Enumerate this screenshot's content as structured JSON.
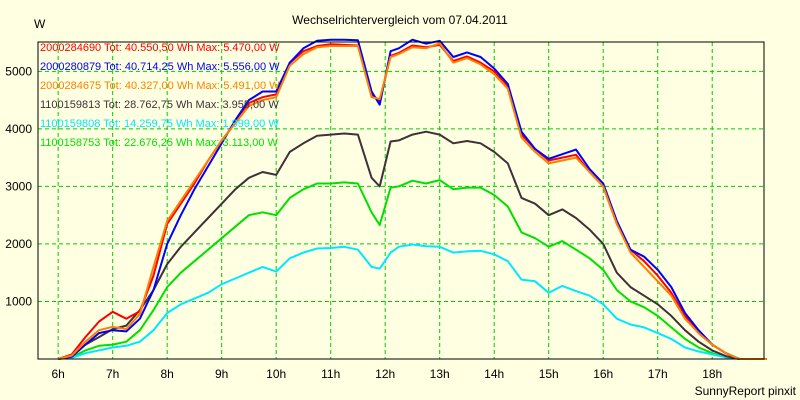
{
  "chart_data": {
    "type": "line",
    "title": "Wechselrichtervergleich vom 07.04.2011",
    "ylabel": "W",
    "xlabel": "",
    "footer": "SunnyReport pinxit",
    "xlim": [
      5.63,
      18.95
    ],
    "ylim": [
      0,
      5510
    ],
    "grid": true,
    "legend_position": "top-left",
    "x_ticks": [
      6,
      7,
      8,
      9,
      10,
      11,
      12,
      13,
      14,
      15,
      16,
      17,
      18
    ],
    "x_tick_labels": [
      "6h",
      "7h",
      "8h",
      "9h",
      "10h",
      "11h",
      "12h",
      "13h",
      "14h",
      "15h",
      "16h",
      "17h",
      "18h"
    ],
    "y_ticks": [
      1000,
      2000,
      3000,
      4000,
      5000
    ],
    "y_tick_labels": [
      "1000",
      "2000",
      "3000",
      "4000",
      "5000"
    ],
    "x": [
      6,
      6.25,
      6.5,
      6.75,
      7,
      7.25,
      7.5,
      7.75,
      8,
      8.25,
      8.5,
      8.75,
      9,
      9.25,
      9.5,
      9.75,
      10,
      10.25,
      10.5,
      10.75,
      11,
      11.25,
      11.5,
      11.75,
      11.9,
      12.1,
      12.25,
      12.5,
      12.75,
      13,
      13.25,
      13.5,
      13.75,
      14,
      14.25,
      14.5,
      14.75,
      15,
      15.25,
      15.5,
      15.75,
      16,
      16.25,
      16.5,
      16.75,
      17,
      17.25,
      17.5,
      17.75,
      18,
      18.25,
      18.5,
      19
    ],
    "series": [
      {
        "name": "2000284690",
        "legend": "2000284690 Tot: 40.550,50 Wh Max: 5.470,00 W",
        "color": "#ff0000",
        "values": [
          0,
          80,
          380,
          650,
          820,
          700,
          830,
          1450,
          2350,
          2700,
          3050,
          3450,
          3800,
          4100,
          4450,
          4550,
          4600,
          5150,
          5350,
          5440,
          5470,
          5460,
          5450,
          4600,
          4480,
          5270,
          5320,
          5450,
          5420,
          5460,
          5180,
          5260,
          5150,
          5000,
          4750,
          3900,
          3650,
          3450,
          3500,
          3550,
          3250,
          3000,
          2350,
          1900,
          1700,
          1450,
          1150,
          750,
          450,
          250,
          100,
          0,
          0
        ]
      },
      {
        "name": "2000280879",
        "legend": "2000280879 Tot: 40.714,25 Wh Max: 5.556,00 W",
        "color": "#0000ff",
        "values": [
          0,
          40,
          250,
          450,
          500,
          480,
          700,
          1200,
          2000,
          2500,
          2950,
          3350,
          3750,
          4150,
          4500,
          4650,
          4650,
          5150,
          5400,
          5530,
          5550,
          5550,
          5540,
          4650,
          4420,
          5350,
          5400,
          5550,
          5480,
          5530,
          5250,
          5330,
          5250,
          5050,
          4780,
          3950,
          3650,
          3480,
          3560,
          3640,
          3300,
          3050,
          2400,
          1900,
          1780,
          1550,
          1250,
          800,
          500,
          250,
          100,
          0,
          0
        ]
      },
      {
        "name": "2000284675",
        "legend": "2000284675 Tot: 40.327,00 Wh Max: 5.491,00 W",
        "color": "#ff8000",
        "values": [
          0,
          60,
          300,
          500,
          560,
          520,
          780,
          1600,
          2400,
          2750,
          3100,
          3450,
          3800,
          4100,
          4400,
          4500,
          4550,
          5100,
          5300,
          5420,
          5440,
          5440,
          5440,
          4550,
          4520,
          5250,
          5300,
          5420,
          5400,
          5490,
          5150,
          5230,
          5120,
          4950,
          4700,
          3850,
          3600,
          3400,
          3450,
          3500,
          3250,
          3000,
          2350,
          1850,
          1600,
          1350,
          1100,
          700,
          450,
          250,
          100,
          0,
          0
        ]
      },
      {
        "name": "1100159813",
        "legend": "1100159813 Tot: 28.762,75 Wh Max: 3.955,00 W",
        "color": "#40303a",
        "values": [
          0,
          50,
          250,
          380,
          520,
          580,
          850,
          1200,
          1650,
          1950,
          2200,
          2450,
          2700,
          2950,
          3150,
          3250,
          3200,
          3600,
          3750,
          3880,
          3900,
          3920,
          3900,
          3150,
          3000,
          3780,
          3800,
          3900,
          3950,
          3900,
          3750,
          3790,
          3750,
          3600,
          3400,
          2800,
          2700,
          2500,
          2600,
          2450,
          2250,
          2000,
          1500,
          1250,
          1100,
          950,
          750,
          500,
          300,
          150,
          50,
          0,
          0
        ]
      },
      {
        "name": "1100159808",
        "legend": "1100159808 Tot: 14.259,75 Wh Max: 1.999,00 W",
        "color": "#00e8ff",
        "values": [
          0,
          20,
          100,
          150,
          200,
          230,
          300,
          500,
          800,
          950,
          1050,
          1150,
          1300,
          1400,
          1500,
          1600,
          1520,
          1750,
          1850,
          1920,
          1930,
          1950,
          1900,
          1600,
          1570,
          1850,
          1950,
          1990,
          1960,
          1950,
          1850,
          1870,
          1880,
          1820,
          1700,
          1380,
          1350,
          1150,
          1270,
          1180,
          1100,
          950,
          700,
          600,
          550,
          450,
          350,
          200,
          130,
          80,
          30,
          0,
          0
        ]
      },
      {
        "name": "1100158753",
        "legend": "1100158753 Tot: 22.676,25 Wh Max: 3.113,00 W",
        "color": "#00e000",
        "values": [
          0,
          30,
          150,
          230,
          250,
          300,
          500,
          850,
          1250,
          1500,
          1700,
          1900,
          2100,
          2300,
          2500,
          2550,
          2500,
          2800,
          2950,
          3050,
          3050,
          3070,
          3050,
          2550,
          2330,
          2980,
          3000,
          3100,
          3050,
          3110,
          2950,
          2980,
          2980,
          2850,
          2650,
          2200,
          2100,
          1950,
          2050,
          1900,
          1750,
          1550,
          1200,
          1000,
          900,
          750,
          550,
          350,
          200,
          100,
          30,
          0,
          0
        ]
      }
    ]
  }
}
